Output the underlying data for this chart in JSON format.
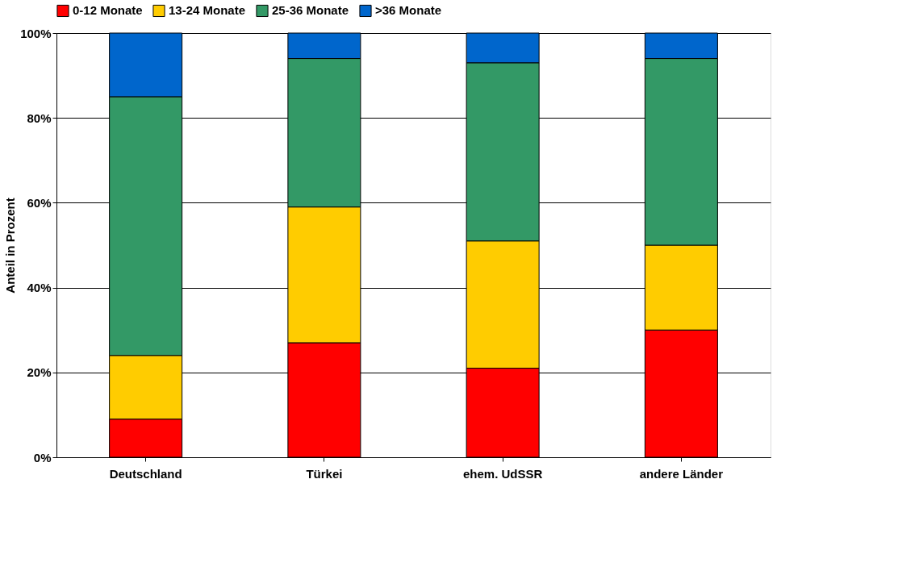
{
  "chart_data": {
    "type": "bar",
    "stacked": true,
    "ylabel": "Anteil in Prozent",
    "categories": [
      "Deutschland",
      "Türkei",
      "ehem. UdSSR",
      "andere Länder"
    ],
    "series": [
      {
        "name": "0-12 Monate",
        "color": "#ff0000",
        "values": [
          9,
          27,
          21,
          30
        ]
      },
      {
        "name": "13-24 Monate",
        "color": "#ffcc00",
        "values": [
          15,
          32,
          30,
          20
        ]
      },
      {
        "name": "25-36 Monate",
        "color": "#339966",
        "values": [
          61,
          35,
          42,
          44
        ]
      },
      {
        "name": ">36 Monate",
        "color": "#0066cc",
        "values": [
          15,
          6,
          7,
          6
        ]
      }
    ],
    "ylim": [
      0,
      100
    ],
    "yticks": [
      {
        "value": 0,
        "label": "0%"
      },
      {
        "value": 20,
        "label": "20%"
      },
      {
        "value": 40,
        "label": "40%"
      },
      {
        "value": 60,
        "label": "60%"
      },
      {
        "value": 80,
        "label": "80%"
      },
      {
        "value": 100,
        "label": "100%"
      }
    ],
    "grid": "y",
    "legend": "top"
  }
}
